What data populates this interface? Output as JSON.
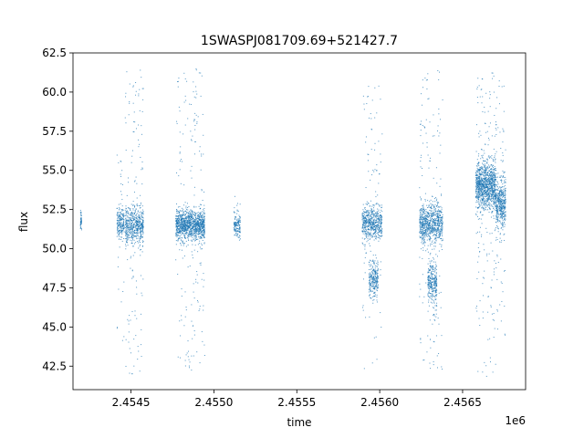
{
  "chart_data": {
    "type": "scatter",
    "title": "1SWASPJ081709.69+521427.7",
    "xlabel": "time",
    "ylabel": "flux",
    "x_offset_label": "1e6",
    "xlim": [
      2454150,
      2456880
    ],
    "ylim": [
      41.0,
      62.5
    ],
    "x_ticks": [
      2454500,
      2455000,
      2455500,
      2456000,
      2456500
    ],
    "x_tick_labels": [
      "2.4545",
      "2.4550",
      "2.4555",
      "2.4560",
      "2.4565"
    ],
    "y_ticks": [
      42.5,
      45.0,
      47.5,
      50.0,
      52.5,
      55.0,
      57.5,
      60.0,
      62.5
    ],
    "y_tick_labels": [
      "42.5",
      "45.0",
      "47.5",
      "50.0",
      "52.5",
      "55.0",
      "57.5",
      "60.0",
      "62.5"
    ],
    "grid": false,
    "legend": "none",
    "marker_color": "#1f77b4",
    "clusters": [
      {
        "x_range": [
          2454195,
          2454202
        ],
        "y_center": 51.8,
        "y_core_spread": 0.6,
        "y_range": [
          51.2,
          52.5
        ],
        "n_points": 50
      },
      {
        "x_range": [
          2454415,
          2454460
        ],
        "y_center": 51.6,
        "y_core_spread": 0.8,
        "y_range": [
          44.0,
          56.0
        ],
        "n_points": 220
      },
      {
        "x_range": [
          2454465,
          2454575
        ],
        "y_center": 51.5,
        "y_core_spread": 1.0,
        "y_range": [
          41.9,
          61.5
        ],
        "n_points": 650
      },
      {
        "x_range": [
          2454770,
          2454945
        ],
        "y_center": 51.5,
        "y_core_spread": 0.8,
        "y_range": [
          42.2,
          61.5
        ],
        "n_points": 1300
      },
      {
        "x_range": [
          2455120,
          2455160
        ],
        "y_center": 51.5,
        "y_core_spread": 0.6,
        "y_range": [
          50.5,
          53.5
        ],
        "n_points": 150
      },
      {
        "x_range": [
          2455895,
          2456015
        ],
        "y_center": 51.6,
        "y_core_spread": 0.9,
        "y_range": [
          42.0,
          61.0
        ],
        "n_points": 650
      },
      {
        "x_range": [
          2455935,
          2455990
        ],
        "y_center": 48.0,
        "y_core_spread": 0.9,
        "y_range": [
          46.5,
          49.5
        ],
        "n_points": 250
      },
      {
        "x_range": [
          2456240,
          2456380
        ],
        "y_center": 51.6,
        "y_core_spread": 1.0,
        "y_range": [
          41.9,
          61.5
        ],
        "n_points": 900
      },
      {
        "x_range": [
          2456290,
          2456345
        ],
        "y_center": 47.8,
        "y_core_spread": 1.0,
        "y_range": [
          45.0,
          50.0
        ],
        "n_points": 300
      },
      {
        "x_range": [
          2456580,
          2456700
        ],
        "y_center": 54.0,
        "y_core_spread": 1.3,
        "y_range": [
          41.8,
          61.5
        ],
        "n_points": 1200
      },
      {
        "x_range": [
          2456700,
          2456760
        ],
        "y_center": 52.8,
        "y_core_spread": 1.3,
        "y_range": [
          44.0,
          61.0
        ],
        "n_points": 500
      }
    ]
  }
}
